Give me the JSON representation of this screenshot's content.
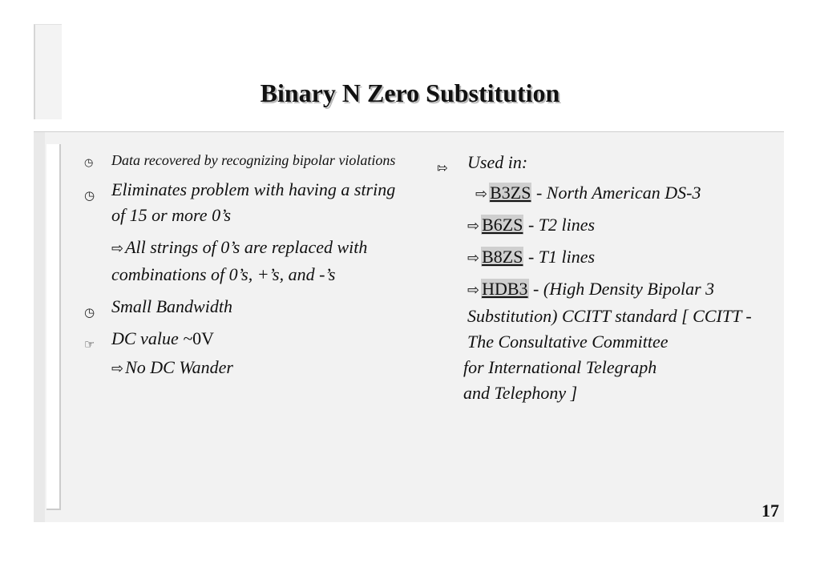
{
  "slide": {
    "title": "Binary N Zero Substitution",
    "page_number": "17"
  },
  "left": {
    "b1_icon": "clock-icon",
    "b1_text": "Data recovered by recognizing bipolar violations",
    "b2_icon": "clock-icon",
    "b2_text": "Eliminates problem with having a string of 15 or more 0’s",
    "b2_sub_text": "All strings of 0’s are replaced with combinations of 0’s, +’s, and -’s",
    "b3_icon": "clock-icon",
    "b3_text": "Small Bandwidth",
    "b4_icon": "hand-arrow-icon",
    "b4_text_italic": "DC value ~",
    "b4_text_plain": "0V",
    "b4_sub_text": "No DC Wander"
  },
  "right": {
    "used_icon": "hollow-arrow-icon",
    "used_label": "Used in:",
    "items": [
      {
        "code": "B3ZS",
        "desc": " - North American   DS-3"
      },
      {
        "code": "B6ZS",
        "desc": " - T2 lines"
      },
      {
        "code": "B8ZS",
        "desc": " - T1 lines"
      },
      {
        "code": "HDB3",
        "desc": " - (High Density Bipolar 3 Substitution)  CCITT standard [ CCITT - The Consultative Committee"
      }
    ],
    "tail_line1": "for International Telegraph",
    "tail_line2": "and Telephony ]"
  },
  "glyphs": {
    "sub_arrow": "⇨",
    "clock": "◷",
    "hand": "☞",
    "hollow_arrow": "⇰"
  }
}
